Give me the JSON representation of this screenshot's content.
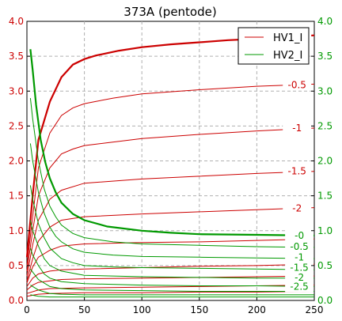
{
  "chart_data": {
    "type": "line",
    "title": "373A (pentode)",
    "xlabel": "",
    "ylabel_left": "",
    "ylabel_right": "",
    "xlim": [
      0,
      250
    ],
    "ylim": [
      0,
      4.0
    ],
    "xticks": [
      0,
      50,
      100,
      150,
      200,
      250
    ],
    "yticks": [
      0.0,
      0.5,
      1.0,
      1.5,
      2.0,
      2.5,
      3.0,
      3.5,
      4.0
    ],
    "grid": true,
    "legend_position": "top-right",
    "legend": [
      {
        "name": "HV1_I",
        "color": "#cc0000"
      },
      {
        "name": "HV2_I",
        "color": "#009900"
      }
    ],
    "red_series": [
      {
        "label": "-0",
        "bold": true,
        "label_x": 235,
        "label_y": 3.79,
        "points": [
          [
            0,
            0.62
          ],
          [
            5,
            1.5
          ],
          [
            10,
            2.3
          ],
          [
            20,
            2.85
          ],
          [
            30,
            3.2
          ],
          [
            40,
            3.38
          ],
          [
            50,
            3.46
          ],
          [
            60,
            3.51
          ],
          [
            80,
            3.58
          ],
          [
            100,
            3.63
          ],
          [
            125,
            3.67
          ],
          [
            150,
            3.7
          ],
          [
            175,
            3.73
          ],
          [
            200,
            3.75
          ],
          [
            230,
            3.78
          ],
          [
            250,
            3.8
          ]
        ]
      },
      {
        "label": "-0.5",
        "label_x": 235,
        "label_y": 3.09,
        "points": [
          [
            0,
            0.5
          ],
          [
            5,
            1.2
          ],
          [
            10,
            1.9
          ],
          [
            20,
            2.4
          ],
          [
            30,
            2.65
          ],
          [
            40,
            2.76
          ],
          [
            50,
            2.82
          ],
          [
            75,
            2.9
          ],
          [
            100,
            2.96
          ],
          [
            150,
            3.02
          ],
          [
            200,
            3.07
          ],
          [
            250,
            3.1
          ]
        ]
      },
      {
        "label": "-1",
        "label_x": 235,
        "label_y": 2.47,
        "points": [
          [
            0,
            0.42
          ],
          [
            5,
            1.0
          ],
          [
            10,
            1.5
          ],
          [
            20,
            1.9
          ],
          [
            30,
            2.1
          ],
          [
            40,
            2.17
          ],
          [
            50,
            2.22
          ],
          [
            100,
            2.32
          ],
          [
            150,
            2.38
          ],
          [
            200,
            2.43
          ],
          [
            250,
            2.47
          ]
        ]
      },
      {
        "label": "-1.5",
        "label_x": 235,
        "label_y": 1.85,
        "points": [
          [
            0,
            0.35
          ],
          [
            5,
            0.8
          ],
          [
            10,
            1.15
          ],
          [
            20,
            1.45
          ],
          [
            30,
            1.58
          ],
          [
            50,
            1.68
          ],
          [
            100,
            1.74
          ],
          [
            150,
            1.78
          ],
          [
            200,
            1.82
          ],
          [
            250,
            1.85
          ]
        ]
      },
      {
        "label": "-2",
        "label_x": 235,
        "label_y": 1.32,
        "points": [
          [
            0,
            0.28
          ],
          [
            5,
            0.6
          ],
          [
            10,
            0.85
          ],
          [
            20,
            1.05
          ],
          [
            30,
            1.15
          ],
          [
            50,
            1.2
          ],
          [
            100,
            1.24
          ],
          [
            150,
            1.27
          ],
          [
            200,
            1.3
          ],
          [
            250,
            1.33
          ]
        ]
      },
      {
        "label": "",
        "points": [
          [
            0,
            0.25
          ],
          [
            5,
            0.48
          ],
          [
            10,
            0.62
          ],
          [
            20,
            0.72
          ],
          [
            30,
            0.78
          ],
          [
            50,
            0.81
          ],
          [
            100,
            0.83
          ],
          [
            150,
            0.84
          ],
          [
            200,
            0.86
          ],
          [
            250,
            0.88
          ]
        ]
      },
      {
        "label": "",
        "points": [
          [
            0,
            0.2
          ],
          [
            5,
            0.32
          ],
          [
            10,
            0.38
          ],
          [
            20,
            0.42
          ],
          [
            30,
            0.44
          ],
          [
            50,
            0.45
          ],
          [
            100,
            0.47
          ],
          [
            150,
            0.49
          ],
          [
            200,
            0.5
          ],
          [
            250,
            0.52
          ]
        ]
      },
      {
        "label": "",
        "points": [
          [
            0,
            0.15
          ],
          [
            5,
            0.22
          ],
          [
            10,
            0.26
          ],
          [
            20,
            0.28
          ],
          [
            30,
            0.3
          ],
          [
            50,
            0.31
          ],
          [
            100,
            0.32
          ],
          [
            150,
            0.33
          ],
          [
            200,
            0.34
          ],
          [
            250,
            0.35
          ]
        ]
      },
      {
        "label": "",
        "points": [
          [
            0,
            0.1
          ],
          [
            10,
            0.15
          ],
          [
            20,
            0.17
          ],
          [
            50,
            0.18
          ],
          [
            100,
            0.19
          ],
          [
            150,
            0.2
          ],
          [
            200,
            0.21
          ],
          [
            250,
            0.22
          ]
        ]
      },
      {
        "label": "",
        "points": [
          [
            0,
            0.06
          ],
          [
            10,
            0.09
          ],
          [
            20,
            0.1
          ],
          [
            50,
            0.11
          ],
          [
            100,
            0.11
          ],
          [
            150,
            0.12
          ],
          [
            200,
            0.12
          ],
          [
            250,
            0.13
          ]
        ]
      }
    ],
    "green_series": [
      {
        "label": "-0",
        "bold": true,
        "label_x": 237,
        "label_y": 0.93,
        "points": [
          [
            3,
            3.6
          ],
          [
            5,
            3.3
          ],
          [
            8,
            2.8
          ],
          [
            12,
            2.3
          ],
          [
            16,
            1.98
          ],
          [
            20,
            1.75
          ],
          [
            25,
            1.55
          ],
          [
            30,
            1.4
          ],
          [
            40,
            1.24
          ],
          [
            50,
            1.15
          ],
          [
            70,
            1.06
          ],
          [
            100,
            1.0
          ],
          [
            125,
            0.97
          ],
          [
            150,
            0.95
          ],
          [
            200,
            0.94
          ],
          [
            250,
            0.93
          ]
        ]
      },
      {
        "label": "-0.5",
        "label_x": 237,
        "label_y": 0.77,
        "points": [
          [
            3,
            2.9
          ],
          [
            5,
            2.6
          ],
          [
            10,
            2.0
          ],
          [
            15,
            1.6
          ],
          [
            20,
            1.35
          ],
          [
            25,
            1.2
          ],
          [
            30,
            1.08
          ],
          [
            40,
            0.96
          ],
          [
            50,
            0.9
          ],
          [
            75,
            0.84
          ],
          [
            100,
            0.81
          ],
          [
            150,
            0.79
          ],
          [
            200,
            0.77
          ],
          [
            250,
            0.76
          ]
        ]
      },
      {
        "label": "-1",
        "label_x": 237,
        "label_y": 0.62,
        "points": [
          [
            3,
            2.25
          ],
          [
            5,
            2.0
          ],
          [
            10,
            1.55
          ],
          [
            15,
            1.25
          ],
          [
            20,
            1.05
          ],
          [
            25,
            0.92
          ],
          [
            30,
            0.84
          ],
          [
            40,
            0.74
          ],
          [
            50,
            0.69
          ],
          [
            75,
            0.65
          ],
          [
            100,
            0.63
          ],
          [
            150,
            0.62
          ],
          [
            200,
            0.61
          ],
          [
            250,
            0.6
          ]
        ]
      },
      {
        "label": "-1.5",
        "label_x": 237,
        "label_y": 0.47,
        "points": [
          [
            3,
            1.65
          ],
          [
            5,
            1.45
          ],
          [
            10,
            1.1
          ],
          [
            15,
            0.9
          ],
          [
            20,
            0.75
          ],
          [
            30,
            0.6
          ],
          [
            40,
            0.54
          ],
          [
            50,
            0.5
          ],
          [
            75,
            0.48
          ],
          [
            100,
            0.47
          ],
          [
            150,
            0.46
          ],
          [
            200,
            0.45
          ],
          [
            250,
            0.44
          ]
        ]
      },
      {
        "label": "-2",
        "label_x": 237,
        "label_y": 0.33,
        "points": [
          [
            3,
            1.15
          ],
          [
            5,
            1.0
          ],
          [
            10,
            0.78
          ],
          [
            15,
            0.6
          ],
          [
            20,
            0.5
          ],
          [
            30,
            0.42
          ],
          [
            50,
            0.36
          ],
          [
            100,
            0.34
          ],
          [
            150,
            0.33
          ],
          [
            200,
            0.32
          ],
          [
            250,
            0.32
          ]
        ]
      },
      {
        "label": "-2.5",
        "label_x": 237,
        "label_y": 0.2,
        "points": [
          [
            3,
            0.75
          ],
          [
            5,
            0.65
          ],
          [
            10,
            0.5
          ],
          [
            15,
            0.38
          ],
          [
            20,
            0.32
          ],
          [
            30,
            0.27
          ],
          [
            50,
            0.24
          ],
          [
            100,
            0.22
          ],
          [
            150,
            0.21
          ],
          [
            200,
            0.21
          ],
          [
            250,
            0.2
          ]
        ]
      },
      {
        "label": "",
        "points": [
          [
            3,
            0.45
          ],
          [
            10,
            0.3
          ],
          [
            20,
            0.2
          ],
          [
            30,
            0.17
          ],
          [
            50,
            0.15
          ],
          [
            100,
            0.14
          ],
          [
            150,
            0.13
          ],
          [
            200,
            0.13
          ],
          [
            250,
            0.13
          ]
        ]
      },
      {
        "label": "",
        "points": [
          [
            3,
            0.22
          ],
          [
            10,
            0.15
          ],
          [
            20,
            0.1
          ],
          [
            30,
            0.09
          ],
          [
            50,
            0.08
          ],
          [
            100,
            0.08
          ],
          [
            150,
            0.08
          ],
          [
            200,
            0.08
          ],
          [
            250,
            0.08
          ]
        ]
      },
      {
        "label": "",
        "points": [
          [
            3,
            0.08
          ],
          [
            10,
            0.06
          ],
          [
            20,
            0.05
          ],
          [
            50,
            0.05
          ],
          [
            100,
            0.05
          ],
          [
            150,
            0.05
          ],
          [
            200,
            0.05
          ],
          [
            250,
            0.05
          ]
        ]
      }
    ],
    "colors": {
      "red": "#cc0000",
      "green": "#009900",
      "grid": "#b0b0b0",
      "right_tick_color": "#009900"
    }
  }
}
